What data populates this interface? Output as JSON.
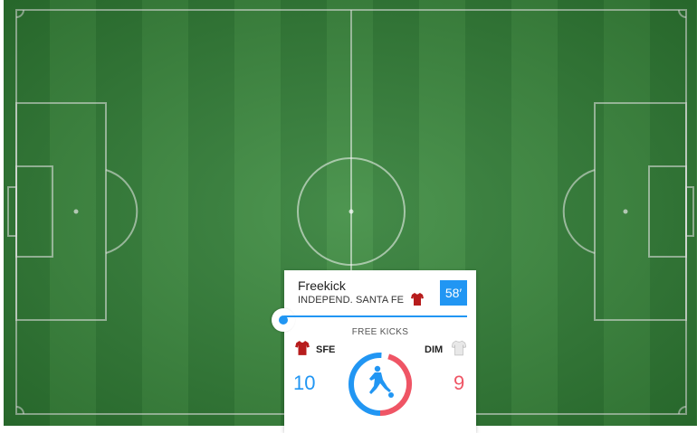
{
  "event": {
    "title": "Freekick",
    "team": "INDEPEND. SANTA FE",
    "minute": "58′"
  },
  "stat": {
    "label": "FREE KICKS",
    "home": {
      "abbr": "SFE",
      "count": "10",
      "color": "#2196f3",
      "shirt_color": "#b71c1c"
    },
    "away": {
      "abbr": "DIM",
      "count": "9",
      "color": "#ef5565",
      "shirt_color": "#e0e0e0"
    }
  },
  "icons": {
    "center": "kicking-player-icon",
    "home_shirt": "red-shirt-icon",
    "away_shirt": "white-shirt-icon"
  }
}
